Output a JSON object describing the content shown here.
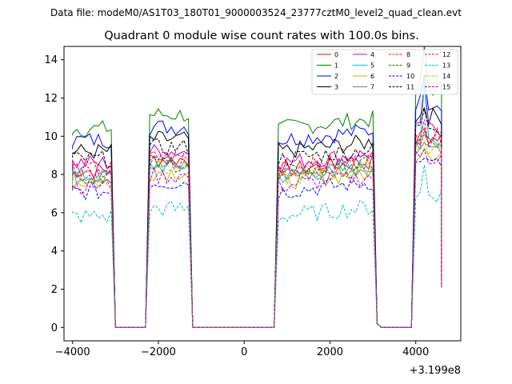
{
  "chart_data": {
    "type": "line",
    "suptitle": "Data file: modeM0/AS1T03_180T01_9000003524_23777cztM0_level2_quad_clean.evt",
    "title": "Quadrant 0 module wise count rates with 100.0s bins.",
    "xlabel": "",
    "ylabel": "",
    "offset_label": "+3.199e8",
    "xlim": [
      -4200,
      5050
    ],
    "ylim": [
      -0.7,
      14.7
    ],
    "x_ticks": [
      -4000,
      -2000,
      0,
      2000,
      4000
    ],
    "y_ticks": [
      0,
      2,
      4,
      6,
      8,
      10,
      12,
      14
    ],
    "legend_position": "top-right",
    "segments": [
      {
        "start": -4000,
        "end": -3100
      },
      {
        "start": -2200,
        "end": -1300
      },
      {
        "start": 800,
        "end": 3000
      },
      {
        "start": 4000,
        "end": 4600
      }
    ],
    "series": [
      {
        "name": "0",
        "color": "#ff0000",
        "dash": "solid",
        "level": 8.2
      },
      {
        "name": "1",
        "color": "#008000",
        "dash": "solid",
        "level": 10.4
      },
      {
        "name": "2",
        "color": "#0000ff",
        "dash": "solid",
        "level": 9.8
      },
      {
        "name": "3",
        "color": "#000000",
        "dash": "solid",
        "level": 9.2
      },
      {
        "name": "4",
        "color": "#bf00bf",
        "dash": "solid",
        "level": 8.6
      },
      {
        "name": "5",
        "color": "#00bfbf",
        "dash": "solid",
        "level": 7.9
      },
      {
        "name": "6",
        "color": "#bfbf00",
        "dash": "solid",
        "level": 7.6
      },
      {
        "name": "7",
        "color": "#808080",
        "dash": "solid",
        "level": 7.9
      },
      {
        "name": "8",
        "color": "#ff0000",
        "dash": "dashed",
        "level": 8.3
      },
      {
        "name": "9",
        "color": "#008000",
        "dash": "dashed",
        "level": 8.0
      },
      {
        "name": "10",
        "color": "#0000ff",
        "dash": "dashed",
        "level": 7.1
      },
      {
        "name": "11",
        "color": "#000000",
        "dash": "dashed",
        "level": 8.8
      },
      {
        "name": "12",
        "color": "#bf00bf",
        "dash": "dashed",
        "level": 7.4
      },
      {
        "name": "13",
        "color": "#00bfbf",
        "dash": "dashed",
        "level": 5.8
      },
      {
        "name": "14",
        "color": "#bfbf00",
        "dash": "dashed",
        "level": 7.8
      },
      {
        "name": "15",
        "color": "#bf00bf",
        "dash": "dashed",
        "level": 8.2
      }
    ]
  }
}
